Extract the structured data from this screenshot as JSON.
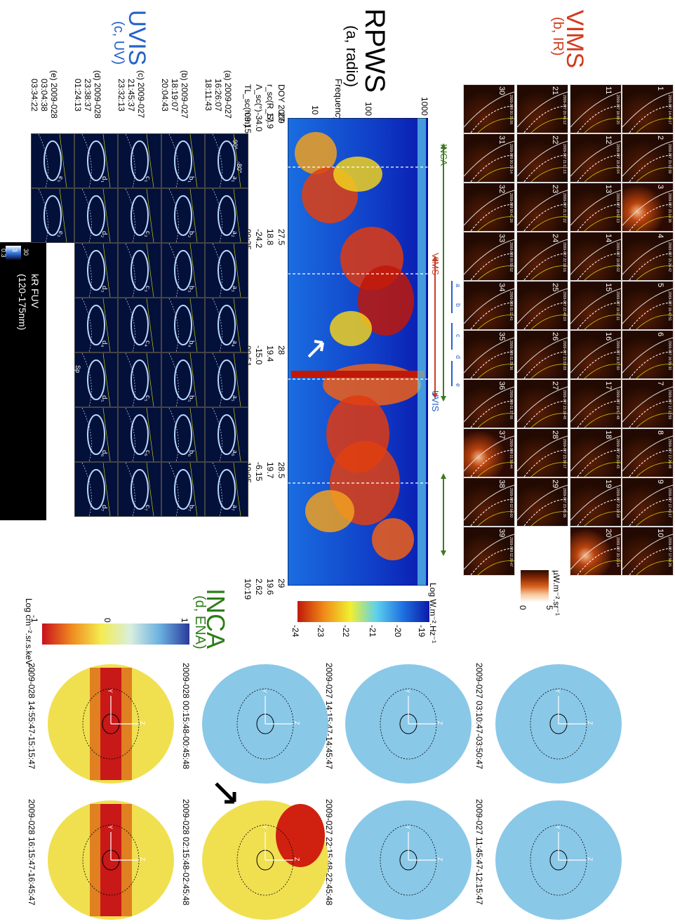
{
  "vims": {
    "title": "VIMS",
    "subtitle": "(b, IR)",
    "colorbar_unit": "µW.m⁻².sr⁻¹",
    "colorbar_ticks": [
      "0",
      "5"
    ],
    "tile_numbers": [
      "1",
      "2",
      "3",
      "4",
      "5",
      "6",
      "7",
      "8",
      "9",
      "10",
      "11",
      "12",
      "13",
      "14",
      "15",
      "16",
      "17",
      "18",
      "19",
      "20",
      "21",
      "22",
      "23",
      "24",
      "25",
      "26",
      "27",
      "28",
      "29",
      "30",
      "31",
      "32",
      "33",
      "34",
      "35",
      "36",
      "37",
      "38",
      "39"
    ],
    "tile_timestamps": [
      "2009-027 14:48:17",
      "2009-027 15:02:39",
      "2009-027 15:14:36",
      "2009-027 15:26:42",
      "2009-027 16:42:51",
      "2009-027 16:55:30",
      "2009-027 17:12:59",
      "2009-027 17:26:48",
      "2009-027 17:43:17",
      "2009-027 17:58:26",
      "2009-027 18:08:20",
      "2009-027 18:26:04",
      "2009-027 18:53:13",
      "2009-027 19:05:02",
      "2009-027 19:11:11",
      "2009-027 19:37:00",
      "2009-027 19:51:48",
      "2009-027 20:03:43",
      "2009-027 20:18:18",
      "2009-027 20:33:14",
      "2009-027 20:46:12",
      "2009-027 21:01:13",
      "2009-027 21:17:22",
      "2009-027 22:18:16",
      "2009-027 22:49:10",
      "2009-027 23:03:09",
      "2009-027 23:18:48",
      "2009-027 23:30:17",
      "2009-027 23:45:36",
      "2009-028 00:15:06",
      "2009-028 00:20:14",
      "2009-028 00:41:26",
      "2009-028 00:55:52",
      "2009-028 01:11:41",
      "2009-028 01:29:36",
      "2009-028 01:37:06",
      "2009-028 01:50:44",
      "2009-028 02:04:00",
      "2009-028 02:20:47"
    ],
    "latitude_labels": [
      "-80°",
      "-90°"
    ]
  },
  "rpws": {
    "title": "RPWS",
    "subtitle": "(a, radio)",
    "ylabel": "Frequency (kHz)",
    "freq_ticks": [
      "1000",
      "100",
      "10"
    ],
    "row_labels": [
      "DOY 2009",
      "r_sc(R_S)",
      "Λ_sc(°)",
      "TL_sc(h:m)"
    ],
    "time_columns": [
      {
        "doy": "27",
        "r": "17.9",
        "lat": "-34.0",
        "lt": "09:15"
      },
      {
        "doy": "27.5",
        "r": "18.8",
        "lat": "-24.2",
        "lt": "09:35"
      },
      {
        "doy": "28",
        "r": "19.4",
        "lat": "-15.0",
        "lt": "09:51"
      },
      {
        "doy": "28.5",
        "r": "19.7",
        "lat": "-6.15",
        "lt": "10:05"
      },
      {
        "doy": "29",
        "r": "19.6",
        "lat": "2.62",
        "lt": "10:19"
      }
    ],
    "colorbar_unit": "Log W.m⁻².Hz⁻¹",
    "colorbar_ticks": [
      "-24",
      "-23",
      "-22",
      "-21",
      "-20",
      "-19"
    ],
    "interval_labels": {
      "inca": "INCA",
      "vims": "VIMS",
      "uvis": "UVIS",
      "a": "a",
      "b": "b",
      "c": "c",
      "d": "d",
      "e": "e"
    }
  },
  "uvis": {
    "title": "UVIS",
    "subtitle": "(c, UV)",
    "sequences": [
      {
        "label": "(a) 2009-027",
        "t1": "16:26:07",
        "t2": "18:11:43"
      },
      {
        "label": "(b) 2009-027",
        "t1": "18:19:07",
        "t2": "20:04:43"
      },
      {
        "label": "(c) 2009-027",
        "t1": "21:45:37",
        "t2": "23:32:13"
      },
      {
        "label": "(d) 2009-028",
        "t1": "23:38:37",
        "t2": "01:24:13"
      },
      {
        "label": "(e) 2009-028",
        "t1": "03:04:38",
        "t2": "03:34:22"
      }
    ],
    "tile_labels": [
      [
        "a₁",
        "a₂",
        "a₃",
        "a₄",
        "a₅",
        "a₆",
        "a₇"
      ],
      [
        "b₁",
        "b₂",
        "b₃",
        "b₄",
        "b₅",
        "b₆",
        "b₇"
      ],
      [
        "c₁",
        "c₂",
        "c₃",
        "c₄",
        "c₅",
        "c₆",
        "c₇"
      ],
      [
        "d₁",
        "d₂",
        "d₃",
        "d₄",
        "d₅",
        "d₆",
        "d₇"
      ],
      [
        "e₁",
        "e₂"
      ]
    ],
    "lat_labels": [
      "-80°",
      "-90°"
    ],
    "sp_label": "Sp",
    "colorbar_title": "kR FUV",
    "colorbar_range": "(120-175nm)",
    "colorbar_ticks": [
      "0.3",
      "3",
      "30"
    ]
  },
  "inca": {
    "title": "INCA",
    "subtitle": "(d, ENA)",
    "colorbar_unit": "Log cm⁻².sr.s.keV⁻¹",
    "colorbar_ticks": [
      "-1",
      "0",
      "1"
    ],
    "panel_times": [
      "2009-027 03:10:47-03:50:47",
      "2009-027 11:45:47-12:15:47",
      "2009-027 14:15:47-14:45:47",
      "2009-027 22:15:48-22:45:48",
      "2009-028 00:15:48-00:45:48",
      "2009-028 02:15:48-02:45:48",
      "2009-028 14:55:47-15:15:47",
      "2009-028 16:15:47-16:45:47"
    ],
    "axis_letters": [
      "X",
      "Y",
      "Z"
    ]
  }
}
